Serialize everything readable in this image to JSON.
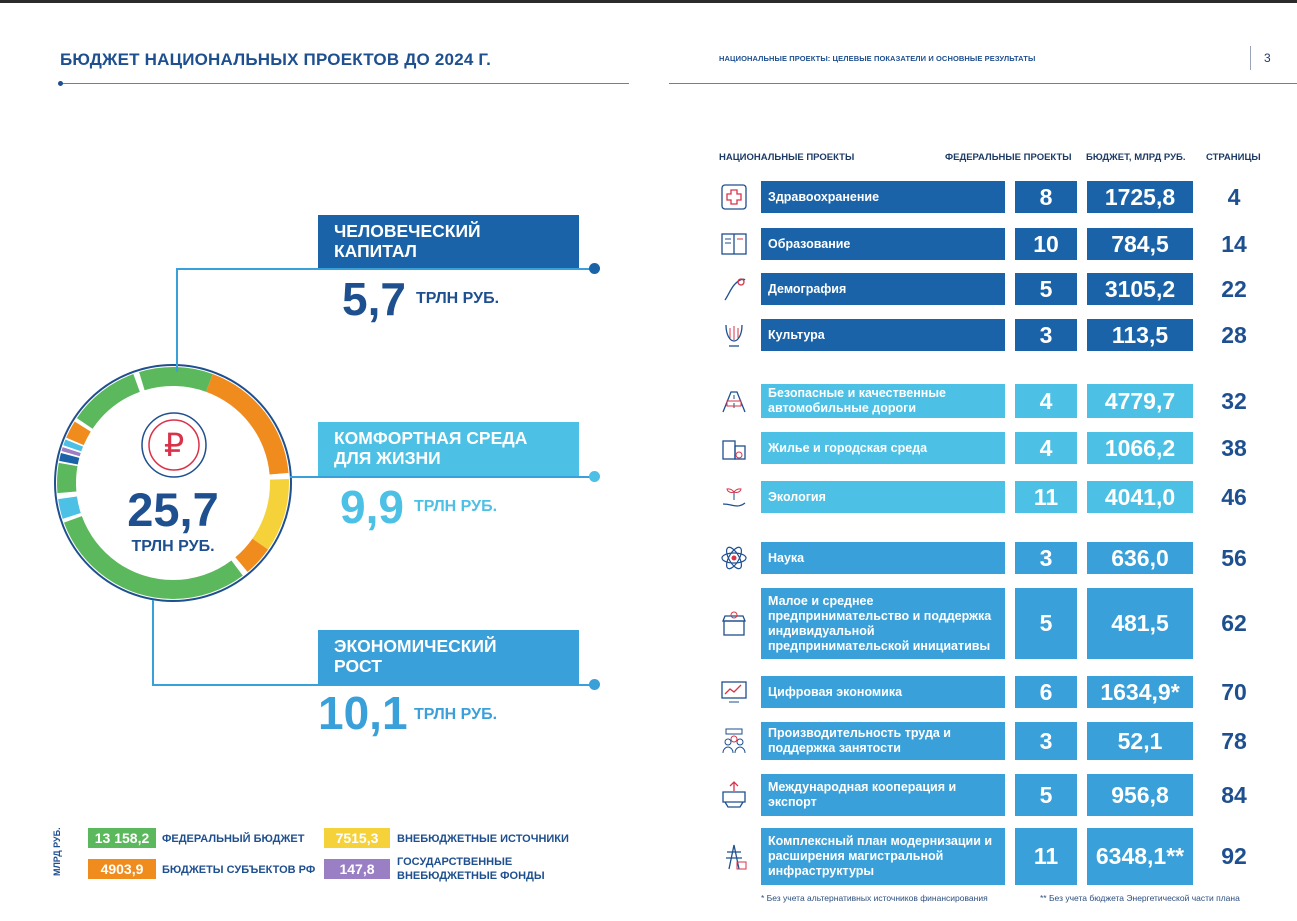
{
  "left": {
    "title": "БЮДЖЕТ НАЦИОНАЛЬНЫХ ПРОЕКТОВ ДО 2024 Г.",
    "total": {
      "value": "25,7",
      "unit": "ТРЛН РУБ."
    },
    "ruble_symbol": "₽",
    "groups": [
      {
        "label": "ЧЕЛОВЕЧЕСКИЙ КАПИТАЛ",
        "value": "5,7",
        "unit": "ТРЛН РУБ.",
        "color": "#1b63a8"
      },
      {
        "label": "КОМФОРТНАЯ СРЕДА ДЛЯ ЖИЗНИ",
        "value": "9,9",
        "unit": "ТРЛН РУБ.",
        "color": "#4cc0e5"
      },
      {
        "label": "ЭКОНОМИЧЕСКИЙ РОСТ",
        "value": "10,1",
        "unit": "ТРЛН РУБ.",
        "color": "#3aa0da"
      }
    ],
    "legend_unit": "МЛРД РУБ.",
    "legend": [
      {
        "value": "13 158,2",
        "label": "ФЕДЕРАЛЬНЫЙ БЮДЖЕТ",
        "color": "#5cb85c"
      },
      {
        "value": "4903,9",
        "label": "БЮДЖЕТЫ СУБЪЕКТОВ РФ",
        "color": "#f08c1e"
      },
      {
        "value": "7515,3",
        "label": "ВНЕБЮДЖЕТНЫЕ ИСТОЧНИКИ",
        "color": "#f5d23a"
      },
      {
        "value": "147,8",
        "label": "ГОСУДАРСТВЕННЫЕ ВНЕБЮДЖЕТНЫЕ ФОНДЫ",
        "color": "#9b7fc4"
      }
    ]
  },
  "right": {
    "subtitle": "НАЦИОНАЛЬНЫЕ ПРОЕКТЫ: ЦЕЛЕВЫЕ ПОКАЗАТЕЛИ И ОСНОВНЫЕ РЕЗУЛЬТАТЫ",
    "page_number": "3",
    "headers": {
      "projects": "НАЦИОНАЛЬНЫЕ ПРОЕКТЫ",
      "federal": "ФЕДЕРАЛЬНЫЕ ПРОЕКТЫ",
      "budget": "БЮДЖЕТ, МЛРД РУБ.",
      "pages": "СТРАНИЦЫ"
    },
    "rows": [
      {
        "name": "Здравоохранение",
        "federal": "8",
        "budget": "1725,8",
        "page": "4",
        "group": 1,
        "icon": "medical-cross-icon"
      },
      {
        "name": "Образование",
        "federal": "10",
        "budget": "784,5",
        "page": "14",
        "group": 1,
        "icon": "book-icon"
      },
      {
        "name": "Демография",
        "federal": "5",
        "budget": "3105,2",
        "page": "22",
        "group": 1,
        "icon": "stork-icon"
      },
      {
        "name": "Культура",
        "federal": "3",
        "budget": "113,5",
        "page": "28",
        "group": 1,
        "icon": "lyre-icon"
      },
      {
        "name": "Безопасные и качественные автомобильные дороги",
        "federal": "4",
        "budget": "4779,7",
        "page": "32",
        "group": 2,
        "icon": "road-icon"
      },
      {
        "name": "Жилье и городская среда",
        "federal": "4",
        "budget": "1066,2",
        "page": "38",
        "group": 2,
        "icon": "buildings-icon"
      },
      {
        "name": "Экология",
        "federal": "11",
        "budget": "4041,0",
        "page": "46",
        "group": 2,
        "icon": "sprout-hand-icon"
      },
      {
        "name": "Наука",
        "federal": "3",
        "budget": "636,0",
        "page": "56",
        "group": 3,
        "icon": "atom-icon"
      },
      {
        "name": "Малое и среднее предпринимательство и поддержка индивидуальной предпринимательской инициативы",
        "federal": "5",
        "budget": "481,5",
        "page": "62",
        "group": 3,
        "icon": "shop-icon"
      },
      {
        "name": "Цифровая экономика",
        "federal": "6",
        "budget": "1634,9*",
        "page": "70",
        "group": 3,
        "icon": "digital-chart-icon"
      },
      {
        "name": "Производительность труда и поддержка занятости",
        "federal": "3",
        "budget": "52,1",
        "page": "78",
        "group": 3,
        "icon": "workers-icon"
      },
      {
        "name": "Международная кооперация и экспорт",
        "federal": "5",
        "budget": "956,8",
        "page": "84",
        "group": 3,
        "icon": "export-icon"
      },
      {
        "name": "Комплексный план модернизации и расширения магистральной инфраструктуры",
        "federal": "11",
        "budget": "6348,1**",
        "page": "92",
        "group": 3,
        "icon": "power-tower-icon"
      }
    ],
    "footnotes": [
      "* Без учета альтернативных источников финансирования",
      "** Без учета бюджета Энергетической части плана"
    ]
  }
}
